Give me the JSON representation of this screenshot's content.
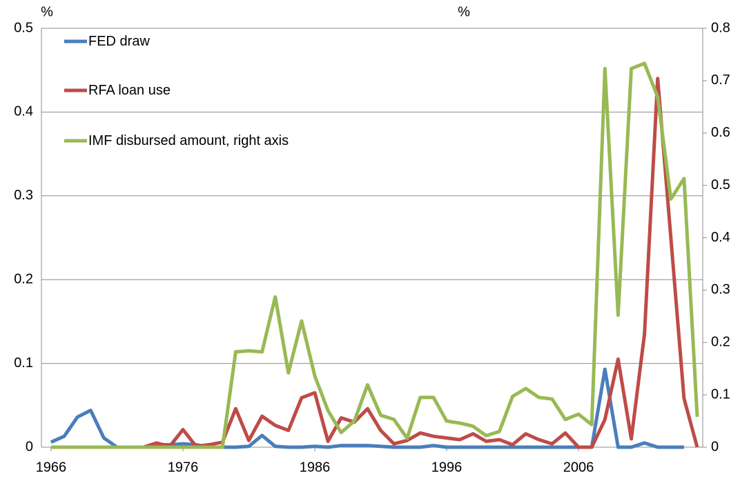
{
  "chart_data": {
    "type": "line",
    "y_unit_left": "%",
    "y_unit_right": "%",
    "x": [
      1966,
      1967,
      1968,
      1969,
      1970,
      1971,
      1972,
      1973,
      1974,
      1975,
      1976,
      1977,
      1978,
      1979,
      1980,
      1981,
      1982,
      1983,
      1984,
      1985,
      1986,
      1987,
      1988,
      1989,
      1990,
      1991,
      1992,
      1993,
      1994,
      1995,
      1996,
      1997,
      1998,
      1999,
      2000,
      2001,
      2002,
      2003,
      2004,
      2005,
      2006,
      2007,
      2008,
      2009,
      2010,
      2011,
      2012,
      2013,
      2014,
      2015
    ],
    "xlim": [
      1965.27,
      2015.42
    ],
    "xticks": [
      1966,
      1976,
      1986,
      1996,
      2006
    ],
    "ylim": [
      0,
      0.5
    ],
    "yticks": [
      0,
      0.1,
      0.2,
      0.3,
      0.4,
      0.5
    ],
    "y2lim": [
      0,
      0.8
    ],
    "y2ticks": [
      0,
      0.1,
      0.2,
      0.3,
      0.4,
      0.5,
      0.6,
      0.7,
      0.8
    ],
    "grid": true,
    "legend": "upper left",
    "series": [
      {
        "name": "FED draw",
        "color": "#4a7ebb",
        "values": [
          0.006,
          0.013,
          0.036,
          0.044,
          0.011,
          0,
          0,
          0,
          0.003,
          0.003,
          0.004,
          0.003,
          0,
          0,
          0,
          0.001,
          0.014,
          0.001,
          0,
          0,
          0.001,
          0,
          0.002,
          0.002,
          0.002,
          0.001,
          0,
          0,
          0,
          0.002,
          0,
          0,
          0,
          0,
          0,
          0,
          0,
          0,
          0,
          0,
          0,
          0,
          0.093,
          0,
          0,
          0.005,
          0,
          0,
          0,
          null
        ]
      },
      {
        "name": "RFA loan use",
        "color": "#be4b48",
        "values": [
          0,
          0,
          0,
          0,
          0,
          0,
          0,
          0,
          0.005,
          0.001,
          0.021,
          0.001,
          0.003,
          0.006,
          0.046,
          0.008,
          0.037,
          0.026,
          0.02,
          0.059,
          0.065,
          0.007,
          0.035,
          0.03,
          0.046,
          0.02,
          0.004,
          0.008,
          0.017,
          0.013,
          0.011,
          0.009,
          0.016,
          0.007,
          0.009,
          0.003,
          0.016,
          0.009,
          0.004,
          0.017,
          0,
          0,
          0.033,
          0.105,
          0.01,
          0.135,
          0.44,
          0.25,
          0.058,
          0
        ]
      },
      {
        "name": "IMF disbursed amount, right axis",
        "color": "#98b954",
        "axis": "y2",
        "values": [
          0,
          0,
          0,
          0,
          0,
          0,
          0,
          0,
          0,
          0,
          0,
          0,
          0,
          0,
          0.182,
          0.184,
          0.182,
          0.287,
          0.142,
          0.241,
          0.136,
          0.07,
          0.028,
          0.05,
          0.119,
          0.061,
          0.053,
          0.017,
          0.095,
          0.095,
          0.05,
          0.046,
          0.04,
          0.022,
          0.03,
          0.097,
          0.112,
          0.095,
          0.092,
          0.053,
          0.063,
          0.043,
          0.723,
          0.252,
          0.723,
          0.733,
          0.669,
          0.474,
          0.513,
          0.058
        ]
      }
    ]
  }
}
